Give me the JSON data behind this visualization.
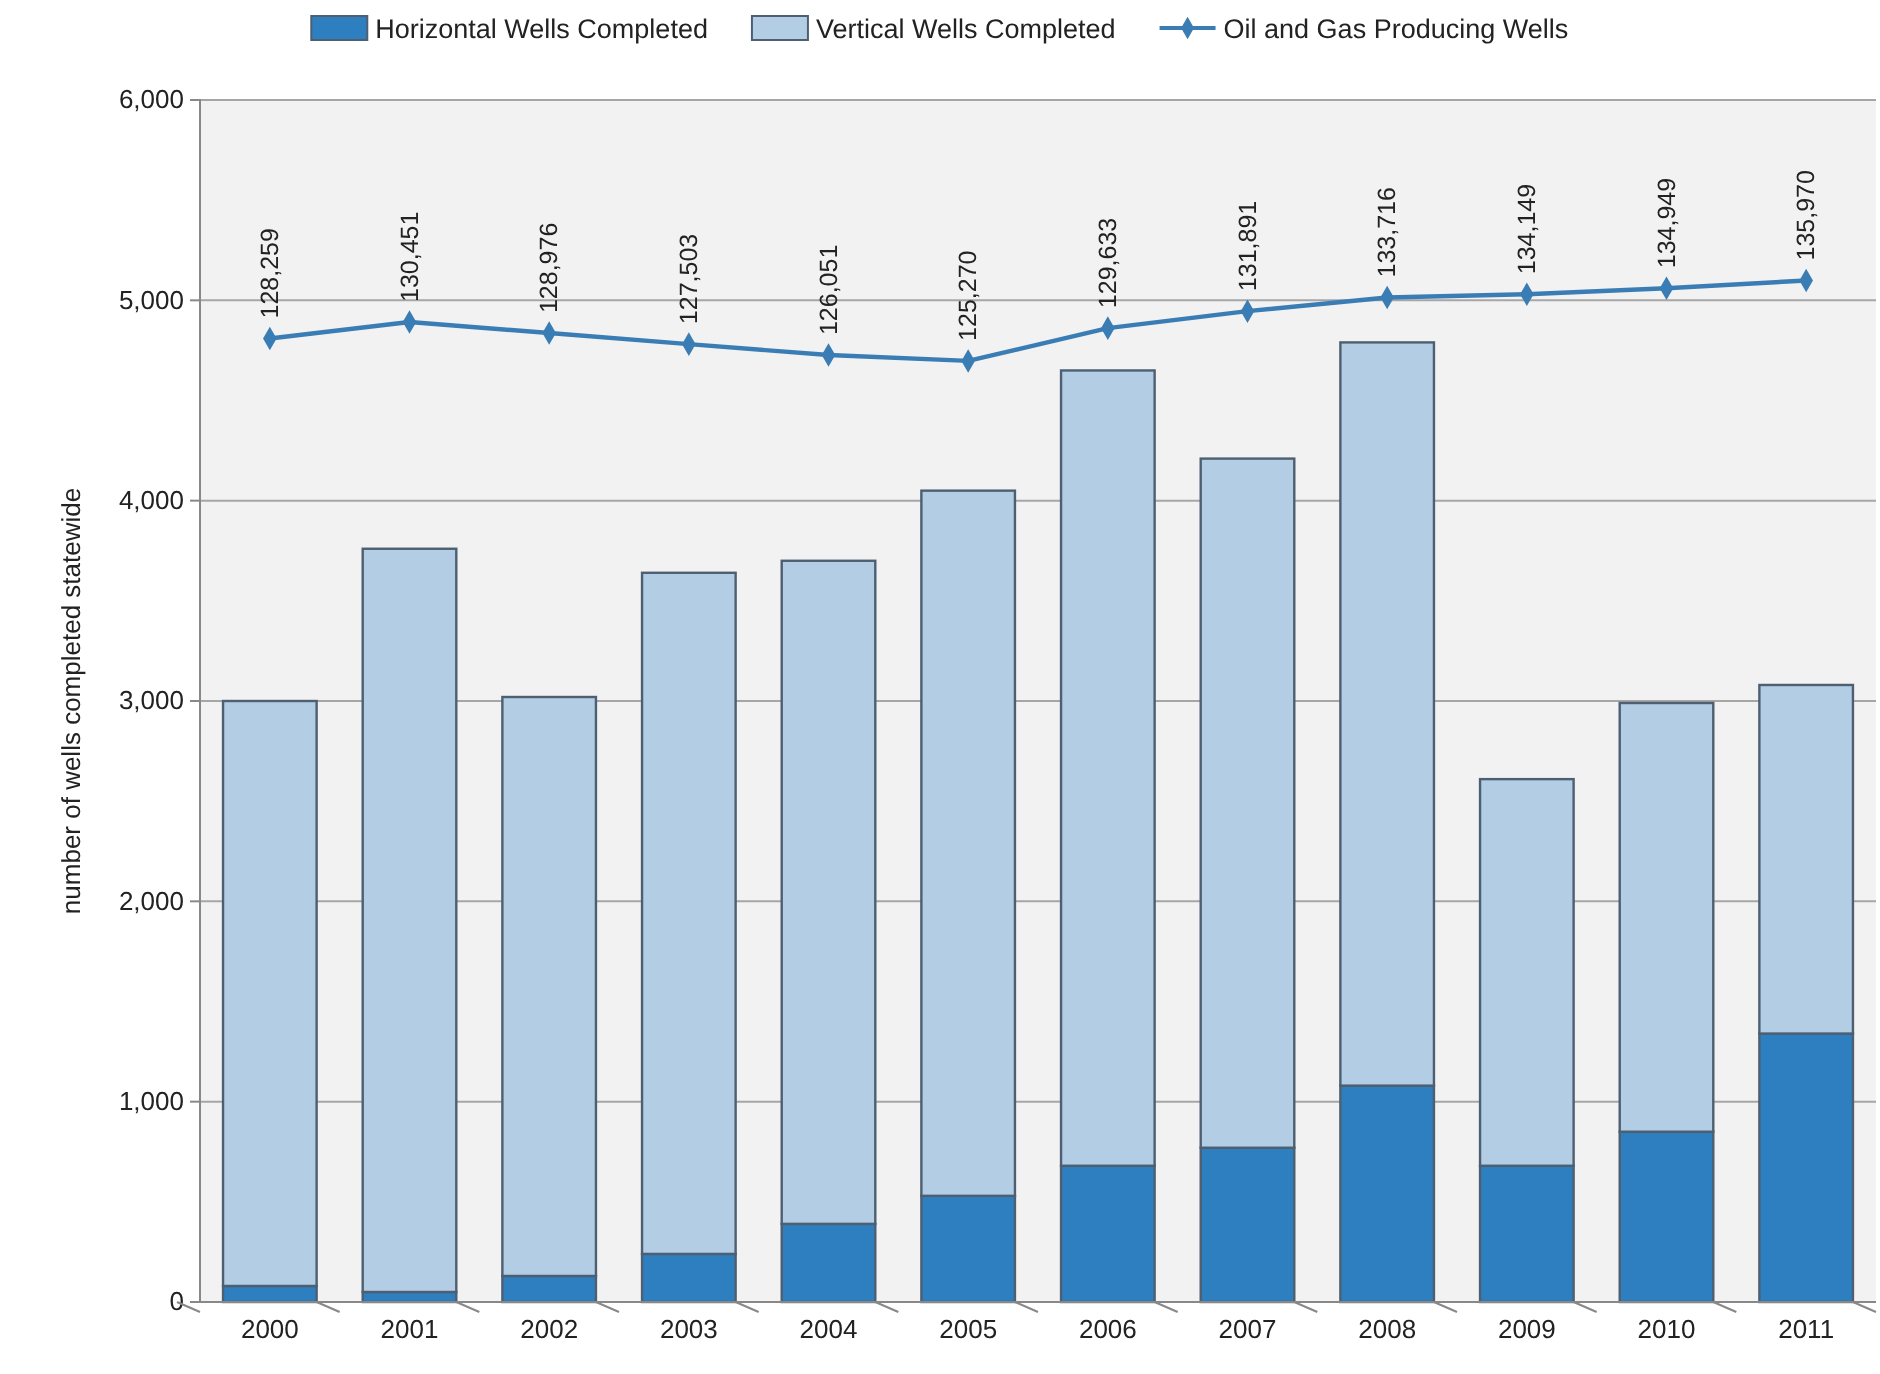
{
  "chart_data": {
    "type": "bar",
    "stacked": true,
    "ylabel": "number of wells completed statewide",
    "categories": [
      "2000",
      "2001",
      "2002",
      "2003",
      "2004",
      "2005",
      "2006",
      "2007",
      "2008",
      "2009",
      "2010",
      "2011"
    ],
    "series": [
      {
        "name": "Horizontal Wells Completed",
        "color": "#2e7fc0",
        "values": [
          80,
          50,
          130,
          240,
          390,
          530,
          680,
          770,
          1080,
          680,
          850,
          1340
        ]
      },
      {
        "name": "Vertical Wells Completed",
        "color": "#b3cde4",
        "values": [
          2920,
          3710,
          2890,
          3400,
          3310,
          3520,
          3970,
          3440,
          3710,
          1930,
          2140,
          1740
        ]
      },
      {
        "name": "Oil and Gas Producing Wells",
        "type": "line",
        "axis": "y2",
        "color": "#3a7db5",
        "marker": "diamond",
        "values": [
          128259,
          130451,
          128976,
          127503,
          126051,
          125270,
          129633,
          131891,
          133716,
          134149,
          134949,
          135970
        ],
        "value_labels": [
          "128,259",
          "130,451",
          "128,976",
          "127,503",
          "126,051",
          "125,270",
          "129,633",
          "131,891",
          "133,716",
          "134,149",
          "134,949",
          "135,970"
        ]
      }
    ],
    "ylim": [
      0,
      6000
    ],
    "yticks": [
      0,
      {
        "value": 1000,
        "label": "1,000"
      },
      {
        "value": 2000,
        "label": "2,000"
      },
      {
        "value": 3000,
        "label": "3,000"
      },
      {
        "value": 4000,
        "label": "4,000"
      },
      {
        "value": 5000,
        "label": "5,000"
      },
      {
        "value": 6000,
        "label": "6,000"
      }
    ],
    "y2lim": [
      0,
      160000
    ],
    "grid": "y",
    "legend": "top"
  }
}
